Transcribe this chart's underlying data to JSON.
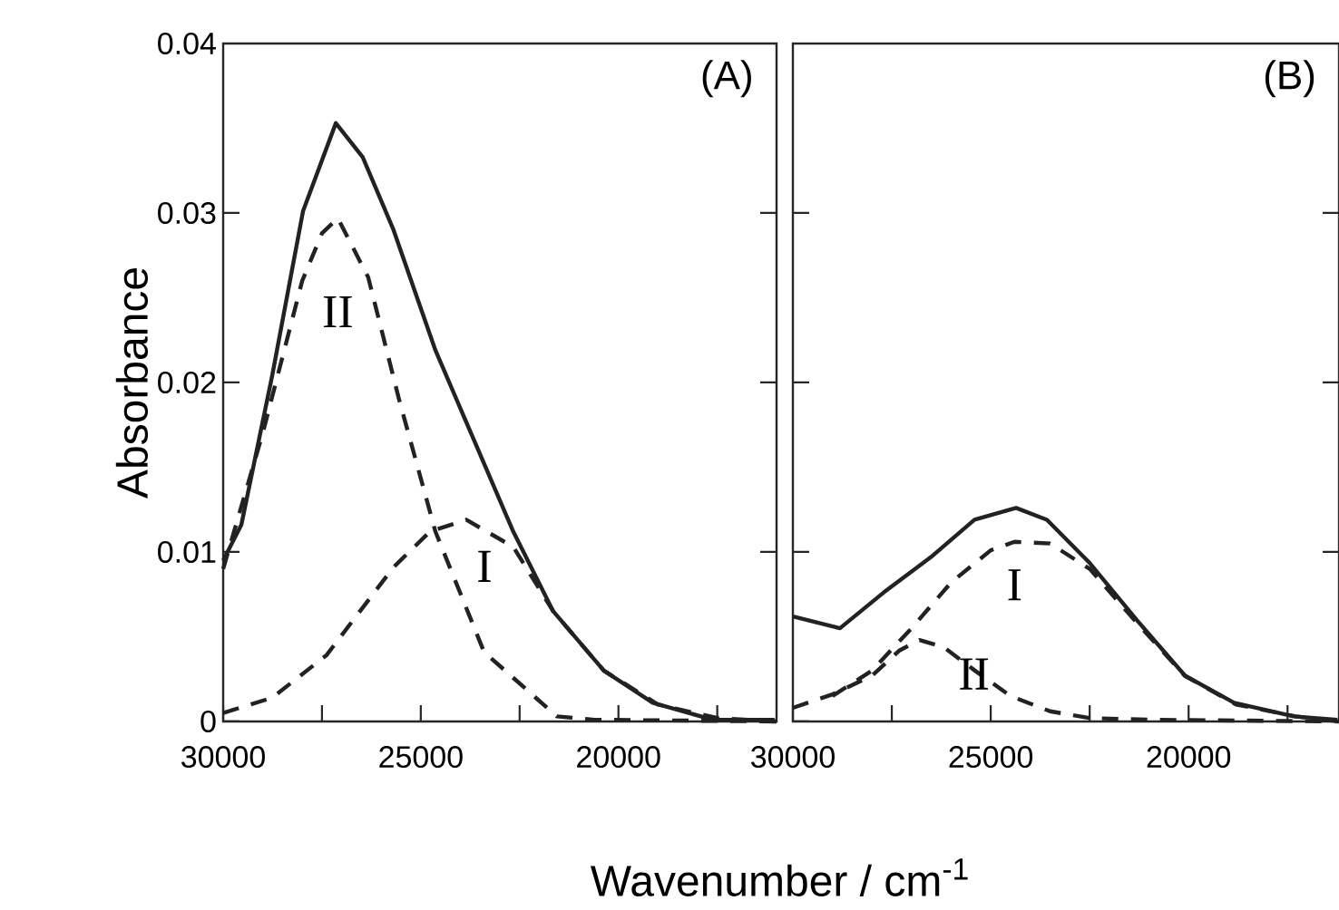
{
  "chart_data": [
    {
      "type": "line",
      "ylabel": "Absorbance",
      "xlabel": "Wavenumber / cm$^{-1}$",
      "xlim": [
        30000,
        16000
      ],
      "ylim": [
        0,
        0.04
      ],
      "xticks": [
        30000,
        {
          "value": 27500,
          "label": null
        },
        25000,
        {
          "value": 22500,
          "label": null
        },
        20000,
        {
          "value": 17500,
          "label": null
        }
      ],
      "yticks": [
        0,
        0.01,
        0.02,
        0.03,
        0.04
      ],
      "series": [
        {
          "color": "#222222",
          "line_style": "solid",
          "x": [
            30000,
            29540,
            28760,
            27980,
            27150,
            26470,
            25690,
            24630,
            23710,
            22660,
            21650,
            20370,
            19130,
            17610,
            16050
          ],
          "values": [
            0.0095,
            0.0116,
            0.0204,
            0.0301,
            0.0353,
            0.0333,
            0.029,
            0.0219,
            0.0169,
            0.0112,
            0.0065,
            0.003,
            0.0011,
            0.0001,
            0.0001
          ]
        },
        {
          "name": "II",
          "color": "#222222",
          "line_style": "dashed",
          "x": [
            30000,
            29000,
            28000,
            27500,
            27100,
            26330,
            25550,
            24630,
            23400,
            21560,
            20600,
            16000
          ],
          "values": [
            0.009,
            0.017,
            0.026,
            0.0288,
            0.0297,
            0.0262,
            0.019,
            0.0112,
            0.0041,
            0.0003,
            0.0001,
            0
          ]
        },
        {
          "name": "I",
          "color": "#222222",
          "line_style": "dashed",
          "x": [
            30000,
            28760,
            27390,
            25690,
            24770,
            23850,
            22660,
            21650,
            20370,
            19000,
            17500,
            16000
          ],
          "values": [
            0.0005,
            0.0014,
            0.0039,
            0.0091,
            0.0112,
            0.0119,
            0.0103,
            0.0065,
            0.003,
            0.001,
            0.0002,
            0
          ]
        }
      ],
      "annotations": [
        "(A)"
      ]
    },
    {
      "type": "line",
      "tick_labels": "x",
      "xlim": [
        30000,
        16200
      ],
      "ylim": [
        0,
        0.04
      ],
      "xticks": [
        30000,
        {
          "value": 27500,
          "label": null
        },
        25000,
        {
          "value": 22500,
          "label": null
        },
        20000,
        {
          "value": 17500,
          "label": null
        }
      ],
      "yticks": [
        0,
        0.01,
        0.02,
        0.03,
        0.04
      ],
      "series": [
        {
          "color": "#222222",
          "line_style": "solid",
          "x": [
            30000,
            28810,
            27710,
            26510,
            25410,
            24360,
            23580,
            22520,
            21280,
            20090,
            18850,
            17340,
            16240
          ],
          "values": [
            0.0062,
            0.0055,
            0.0076,
            0.0097,
            0.0119,
            0.0126,
            0.0119,
            0.0094,
            0.0059,
            0.0027,
            0.0011,
            0.0003,
            0.0001
          ]
        },
        {
          "name": "I",
          "color": "#222222",
          "line_style": "dashed",
          "x": [
            29000,
            28000,
            27000,
            26000,
            25000,
            24400,
            23500,
            22500,
            21300,
            20100,
            18800,
            17300,
            16200
          ],
          "values": [
            0.0015,
            0.003,
            0.0055,
            0.0082,
            0.0101,
            0.0106,
            0.0105,
            0.009,
            0.0058,
            0.0027,
            0.001,
            0.0003,
            0
          ]
        },
        {
          "name": "II",
          "color": "#222222",
          "line_style": "dashed",
          "x": [
            30000,
            29000,
            28000,
            27300,
            26800,
            26200,
            25400,
            24500,
            23500,
            22500,
            21000,
            16200
          ],
          "values": [
            0.0008,
            0.0016,
            0.0027,
            0.0042,
            0.0048,
            0.0044,
            0.003,
            0.0015,
            0.0006,
            0.0002,
            0.0001,
            0
          ]
        }
      ],
      "annotations": [
        "(B)"
      ]
    }
  ]
}
